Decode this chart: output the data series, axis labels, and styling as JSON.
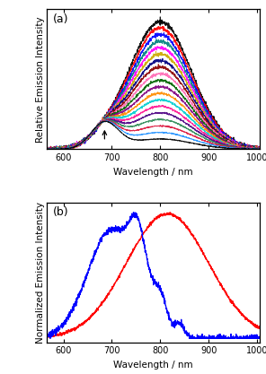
{
  "panel_a": {
    "xlabel": "Wavelength / nm",
    "ylabel": "Relative Emission Intensity",
    "xlim": [
      565,
      1005
    ],
    "ylim": [
      0,
      1.08
    ],
    "xticks": [
      600,
      700,
      800,
      900,
      1000
    ],
    "colors": [
      "#000000",
      "#ff0000",
      "#0000ff",
      "#008080",
      "#ff00ff",
      "#ccaa00",
      "#000080",
      "#8b0000",
      "#ff69b4",
      "#006400",
      "#800080",
      "#ff8c00",
      "#00ced1",
      "#ff1493",
      "#4b0082",
      "#2e8b57",
      "#dc143c",
      "#1e90ff",
      "#000000"
    ]
  },
  "panel_b": {
    "xlabel": "Wavelength / nm",
    "ylabel": "Normalized Emission Intensity",
    "xlim": [
      565,
      1005
    ],
    "ylim": [
      -0.03,
      1.08
    ],
    "xticks": [
      600,
      700,
      800,
      900,
      1000
    ]
  },
  "fig_background": "#ffffff",
  "label_fontsize": 7.5,
  "tick_fontsize": 7,
  "panel_label_fontsize": 9
}
